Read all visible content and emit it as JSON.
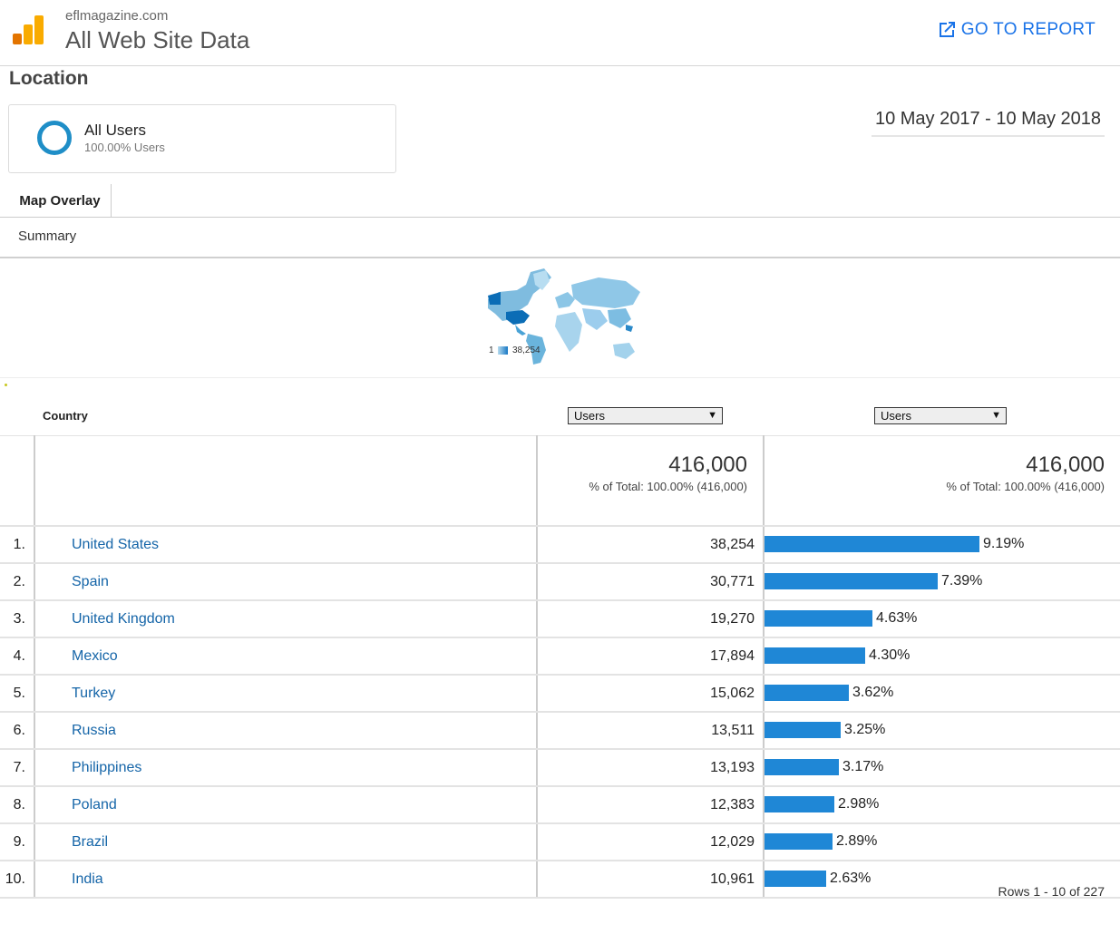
{
  "header": {
    "site": "eflmagazine.com",
    "view": "All Web Site Data",
    "go_to_report": "GO TO REPORT"
  },
  "report_title": "Location",
  "segment": {
    "name": "All Users",
    "share": "100.00% Users"
  },
  "date_range": "10 May 2017 - 10 May 2018",
  "tab": "Map Overlay",
  "summary_label": "Summary",
  "map_legend": {
    "min": "1",
    "max": "38,254"
  },
  "table": {
    "dimension_header": "Country",
    "metric_select_1": "Users",
    "metric_select_2": "Users",
    "total_1": {
      "value": "416,000",
      "note": "% of Total: 100.00% (416,000)"
    },
    "total_2": {
      "value": "416,000",
      "note": "% of Total: 100.00% (416,000)"
    },
    "rows": [
      {
        "idx": "1.",
        "country": "United States",
        "users": "38,254",
        "pct": "9.19%",
        "share": 9.19
      },
      {
        "idx": "2.",
        "country": "Spain",
        "users": "30,771",
        "pct": "7.39%",
        "share": 7.39
      },
      {
        "idx": "3.",
        "country": "United Kingdom",
        "users": "19,270",
        "pct": "4.63%",
        "share": 4.63
      },
      {
        "idx": "4.",
        "country": "Mexico",
        "users": "17,894",
        "pct": "4.30%",
        "share": 4.3
      },
      {
        "idx": "5.",
        "country": "Turkey",
        "users": "15,062",
        "pct": "3.62%",
        "share": 3.62
      },
      {
        "idx": "6.",
        "country": "Russia",
        "users": "13,511",
        "pct": "3.25%",
        "share": 3.25
      },
      {
        "idx": "7.",
        "country": "Philippines",
        "users": "13,193",
        "pct": "3.17%",
        "share": 3.17
      },
      {
        "idx": "8.",
        "country": "Poland",
        "users": "12,383",
        "pct": "2.98%",
        "share": 2.98
      },
      {
        "idx": "9.",
        "country": "Brazil",
        "users": "12,029",
        "pct": "2.89%",
        "share": 2.89
      },
      {
        "idx": "10.",
        "country": "India",
        "users": "10,961",
        "pct": "2.63%",
        "share": 2.63
      }
    ]
  },
  "pagination": "Rows 1 - 10 of 227",
  "colors": {
    "accent": "#1a73e8",
    "bar": "#1f87d6",
    "link": "#1565a8",
    "logo": "#f9ab00"
  }
}
